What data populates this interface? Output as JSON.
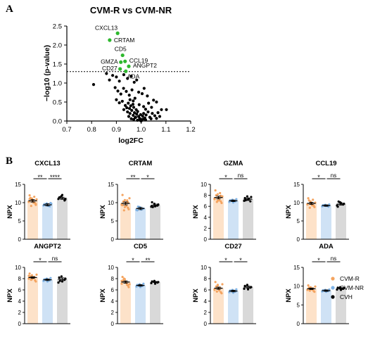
{
  "panel_labels": [
    "A",
    "B"
  ],
  "colors": {
    "cvm_r": "#f4a460",
    "cvm_nr": "#7fb3e6",
    "cvh": "#000000",
    "highlight": "#2eb82e",
    "bar_r": "#fde2c9",
    "bar_nr": "#cfe2f5",
    "bar_cvh": "#d9d9d9"
  },
  "chart_data": [
    {
      "type": "scatter",
      "title": "CVM-R vs CVM-NR",
      "xlabel": "log2FC",
      "ylabel": "−log10 (p-value)",
      "xlim": [
        0.7,
        1.2
      ],
      "ylim": [
        0.0,
        2.5
      ],
      "xticks": [
        "0.7",
        "0.8",
        "0.9",
        "1.0",
        "1.1",
        "1.2"
      ],
      "yticks": [
        "0.0",
        "0.5",
        "1.0",
        "1.5",
        "2.0",
        "2.5"
      ],
      "threshold": 1.3,
      "labeled_points": [
        {
          "label": "CXCL13",
          "x": 0.905,
          "y": 2.31
        },
        {
          "label": "CRTAM",
          "x": 0.873,
          "y": 2.13
        },
        {
          "label": "CD5",
          "x": 0.925,
          "y": 1.73
        },
        {
          "label": "CCL19",
          "x": 0.935,
          "y": 1.57
        },
        {
          "label": "GMZA",
          "x": 0.918,
          "y": 1.55
        },
        {
          "label": "ANGPT2",
          "x": 0.95,
          "y": 1.44
        },
        {
          "label": "CD27",
          "x": 0.915,
          "y": 1.37
        },
        {
          "label": "ADA",
          "x": 0.938,
          "y": 1.31
        }
      ],
      "points": [
        [
          0.808,
          0.96
        ],
        [
          0.86,
          1.25
        ],
        [
          0.872,
          1.08
        ],
        [
          0.885,
          1.2
        ],
        [
          0.9,
          1.16
        ],
        [
          0.912,
          1.05
        ],
        [
          0.93,
          1.22
        ],
        [
          0.945,
          1.12
        ],
        [
          0.96,
          1.18
        ],
        [
          0.972,
          1.02
        ],
        [
          0.982,
          1.08
        ],
        [
          0.895,
          0.88
        ],
        [
          0.906,
          0.79
        ],
        [
          0.918,
          0.71
        ],
        [
          0.929,
          0.86
        ],
        [
          0.94,
          0.78
        ],
        [
          0.952,
          0.68
        ],
        [
          0.963,
          0.82
        ],
        [
          0.975,
          0.6
        ],
        [
          0.99,
          0.76
        ],
        [
          1.004,
          0.72
        ],
        [
          1.012,
          0.86
        ],
        [
          1.025,
          0.66
        ],
        [
          0.9,
          0.56
        ],
        [
          0.912,
          0.48
        ],
        [
          0.924,
          0.52
        ],
        [
          0.936,
          0.41
        ],
        [
          0.948,
          0.47
        ],
        [
          0.958,
          0.4
        ],
        [
          0.97,
          0.36
        ],
        [
          0.98,
          0.3
        ],
        [
          0.992,
          0.43
        ],
        [
          1.01,
          0.38
        ],
        [
          1.03,
          0.47
        ],
        [
          1.05,
          0.55
        ],
        [
          1.062,
          0.5
        ],
        [
          1.082,
          0.3
        ],
        [
          1.102,
          0.3
        ],
        [
          0.93,
          0.3
        ],
        [
          0.945,
          0.24
        ],
        [
          0.955,
          0.2
        ],
        [
          0.962,
          0.28
        ],
        [
          0.968,
          0.15
        ],
        [
          0.973,
          0.22
        ],
        [
          0.978,
          0.1
        ],
        [
          0.982,
          0.18
        ],
        [
          0.986,
          0.25
        ],
        [
          0.99,
          0.12
        ],
        [
          0.994,
          0.07
        ],
        [
          0.998,
          0.17
        ],
        [
          1.002,
          0.04
        ],
        [
          1.006,
          0.13
        ],
        [
          1.01,
          0.2
        ],
        [
          1.015,
          0.08
        ],
        [
          1.02,
          0.16
        ],
        [
          1.028,
          0.24
        ],
        [
          1.035,
          0.1
        ],
        [
          1.045,
          0.2
        ],
        [
          1.055,
          0.14
        ],
        [
          1.068,
          0.22
        ],
        [
          1.075,
          0.12
        ],
        [
          0.95,
          0.12
        ],
        [
          0.96,
          0.06
        ],
        [
          0.97,
          0.04
        ],
        [
          0.976,
          0.09
        ],
        [
          0.985,
          0.02
        ],
        [
          0.996,
          0.02
        ],
        [
          1.0,
          0.0
        ],
        [
          1.008,
          0.05
        ],
        [
          1.018,
          0.03
        ],
        [
          1.04,
          0.06
        ],
        [
          1.062,
          0.07
        ],
        [
          0.942,
          0.35
        ],
        [
          0.953,
          0.33
        ],
        [
          0.967,
          0.44
        ],
        [
          1.018,
          0.31
        ],
        [
          1.042,
          0.36
        ],
        [
          0.955,
          0.56
        ],
        [
          0.968,
          0.53
        ]
      ]
    },
    {
      "type": "bar",
      "gene": "CXCL13",
      "ylabel": "NPX",
      "ylim": [
        0,
        15
      ],
      "yticks": [
        "0",
        "5",
        "10",
        "15"
      ],
      "categories": [
        "CVM-R",
        "CVM-NR",
        "CVH"
      ],
      "means": [
        10.5,
        9.4,
        11.2
      ],
      "errors": [
        0.35,
        0.3,
        0.3
      ],
      "points": [
        [
          10.3,
          11.1,
          9.8,
          12.0,
          10.6,
          9.4,
          11.3,
          10.0,
          10.9,
          9.1,
          11.6,
          10.2,
          10.7,
          9.9,
          11.0,
          10.4,
          9.6
        ],
        [
          9.2,
          9.8,
          9.0,
          9.6,
          9.3,
          9.9,
          9.4,
          9.1,
          9.7
        ],
        [
          11.0,
          11.8,
          10.6,
          11.4,
          12.1,
          10.9,
          11.5
        ]
      ],
      "comparisons": [
        {
          "from": 0,
          "to": 1,
          "label": "**"
        },
        {
          "from": 1,
          "to": 2,
          "label": "****"
        }
      ]
    },
    {
      "type": "bar",
      "gene": "CRTAM",
      "ylabel": "NPX",
      "ylim": [
        0,
        15
      ],
      "yticks": [
        "0",
        "5",
        "10",
        "15"
      ],
      "categories": [
        "CVM-R",
        "CVM-NR",
        "CVH"
      ],
      "means": [
        9.8,
        8.4,
        9.3
      ],
      "errors": [
        0.4,
        0.3,
        0.3
      ],
      "points": [
        [
          9.4,
          10.7,
          8.6,
          12.1,
          9.9,
          8.2,
          10.3,
          9.1,
          11.2,
          7.9,
          10.6,
          9.6,
          8.8,
          10.1,
          9.3
        ],
        [
          8.0,
          8.8,
          8.3,
          7.9,
          8.6,
          8.4,
          8.9,
          8.1
        ],
        [
          8.9,
          9.7,
          9.2,
          10.1,
          9.0,
          9.5,
          8.8
        ]
      ],
      "comparisons": [
        {
          "from": 0,
          "to": 1,
          "label": "**"
        },
        {
          "from": 1,
          "to": 2,
          "label": "*"
        }
      ]
    },
    {
      "type": "bar",
      "gene": "GZMA",
      "ylabel": "NPX",
      "ylim": [
        0,
        10
      ],
      "yticks": [
        "0",
        "2",
        "4",
        "6",
        "8",
        "10"
      ],
      "categories": [
        "CVM-R",
        "CVM-NR",
        "CVH"
      ],
      "means": [
        7.6,
        7.0,
        7.3
      ],
      "errors": [
        0.25,
        0.15,
        0.2
      ],
      "points": [
        [
          7.3,
          8.2,
          6.9,
          8.9,
          7.6,
          6.6,
          8.0,
          7.1,
          7.8,
          6.8,
          8.4,
          7.4,
          7.0,
          7.9
        ],
        [
          6.8,
          7.2,
          6.9,
          7.1,
          6.7,
          7.3,
          7.0
        ],
        [
          7.0,
          7.8,
          6.9,
          7.5,
          7.2,
          7.7,
          7.1,
          7.4
        ]
      ],
      "comparisons": [
        {
          "from": 0,
          "to": 1,
          "label": "*"
        },
        {
          "from": 1,
          "to": 2,
          "label": "ns"
        }
      ]
    },
    {
      "type": "bar",
      "gene": "CCL19",
      "ylabel": "NPX",
      "ylim": [
        0,
        15
      ],
      "yticks": [
        "0",
        "5",
        "10",
        "15"
      ],
      "categories": [
        "CVM-R",
        "CVM-NR",
        "CVH"
      ],
      "means": [
        9.8,
        9.2,
        9.6
      ],
      "errors": [
        0.3,
        0.2,
        0.3
      ],
      "points": [
        [
          9.5,
          10.3,
          9.1,
          11.2,
          9.8,
          8.8,
          10.6,
          9.3,
          10.0,
          8.6,
          10.8,
          9.6,
          9.9,
          9.2
        ],
        [
          9.0,
          9.4,
          8.9,
          9.3,
          9.1,
          9.5,
          9.2
        ],
        [
          9.2,
          10.1,
          9.5,
          8.9,
          9.9,
          9.7,
          10.3
        ]
      ],
      "comparisons": [
        {
          "from": 0,
          "to": 1,
          "label": "*"
        },
        {
          "from": 1,
          "to": 2,
          "label": "ns"
        }
      ]
    },
    {
      "type": "bar",
      "gene": "ANGPT2",
      "ylabel": "NPX",
      "ylim": [
        0,
        10
      ],
      "yticks": [
        "0",
        "2",
        "4",
        "6",
        "8",
        "10"
      ],
      "categories": [
        "CVM-R",
        "CVM-NR",
        "CVH"
      ],
      "means": [
        8.2,
        7.8,
        7.9
      ],
      "errors": [
        0.15,
        0.15,
        0.25
      ],
      "points": [
        [
          8.0,
          8.6,
          7.7,
          8.9,
          8.2,
          7.5,
          8.4,
          8.1,
          8.7,
          7.8,
          8.3,
          8.5,
          7.9
        ],
        [
          7.6,
          8.0,
          7.7,
          7.9,
          7.5,
          8.1,
          7.8
        ],
        [
          7.3,
          8.4,
          7.8,
          8.2,
          7.5,
          8.0,
          7.6
        ]
      ],
      "comparisons": [
        {
          "from": 0,
          "to": 1,
          "label": "*"
        },
        {
          "from": 1,
          "to": 2,
          "label": "ns"
        }
      ]
    },
    {
      "type": "bar",
      "gene": "CD5",
      "ylabel": "NPX",
      "ylim": [
        0,
        10
      ],
      "yticks": [
        "0",
        "2",
        "4",
        "6",
        "8",
        "10"
      ],
      "categories": [
        "CVM-R",
        "CVM-NR",
        "CVH"
      ],
      "means": [
        7.4,
        6.8,
        7.4
      ],
      "errors": [
        0.2,
        0.15,
        0.1
      ],
      "points": [
        [
          7.1,
          7.9,
          6.8,
          8.3,
          7.5,
          6.5,
          7.7,
          7.2,
          7.0,
          8.0,
          6.9,
          7.6
        ],
        [
          6.6,
          7.0,
          6.7,
          6.9,
          6.5,
          7.1,
          6.8
        ],
        [
          7.2,
          7.6,
          7.3,
          7.5,
          7.1,
          7.4
        ]
      ],
      "comparisons": [
        {
          "from": 0,
          "to": 1,
          "label": "*"
        },
        {
          "from": 1,
          "to": 2,
          "label": "**"
        }
      ]
    },
    {
      "type": "bar",
      "gene": "CD27",
      "ylabel": "NPX",
      "ylim": [
        0,
        10
      ],
      "yticks": [
        "0",
        "2",
        "4",
        "6",
        "8",
        "10"
      ],
      "categories": [
        "CVM-R",
        "CVM-NR",
        "CVH"
      ],
      "means": [
        6.3,
        5.8,
        6.5
      ],
      "errors": [
        0.2,
        0.15,
        0.2
      ],
      "points": [
        [
          6.0,
          6.8,
          5.6,
          7.4,
          6.3,
          5.4,
          6.6,
          5.9,
          7.0,
          5.7,
          6.4,
          6.1,
          6.9
        ],
        [
          5.6,
          6.0,
          5.7,
          5.9,
          5.5,
          6.1,
          5.8
        ],
        [
          6.2,
          6.9,
          6.4,
          6.7,
          6.1,
          6.5
        ]
      ],
      "comparisons": [
        {
          "from": 0,
          "to": 1,
          "label": "*"
        },
        {
          "from": 1,
          "to": 2,
          "label": "*"
        }
      ]
    },
    {
      "type": "bar",
      "gene": "ADA",
      "ylabel": "NPX",
      "ylim": [
        0,
        15
      ],
      "yticks": [
        "0",
        "5",
        "10",
        "15"
      ],
      "categories": [
        "CVM-R",
        "CVM-NR",
        "CVH"
      ],
      "means": [
        9.3,
        8.8,
        9.4
      ],
      "errors": [
        0.2,
        0.2,
        0.2
      ],
      "points": [
        [
          9.0,
          9.7,
          8.7,
          10.2,
          9.3,
          8.5,
          9.6,
          9.1,
          9.9,
          8.8,
          9.4
        ],
        [
          8.6,
          9.0,
          8.7,
          8.9,
          8.5,
          9.1,
          8.8
        ],
        [
          9.1,
          9.7,
          9.3,
          9.6,
          9.0,
          9.5
        ]
      ],
      "comparisons": [
        {
          "from": 0,
          "to": 1,
          "label": "*"
        },
        {
          "from": 1,
          "to": 2,
          "label": "ns"
        }
      ]
    }
  ],
  "legend": [
    "CVM-R",
    "CVM-NR",
    "CVH"
  ]
}
